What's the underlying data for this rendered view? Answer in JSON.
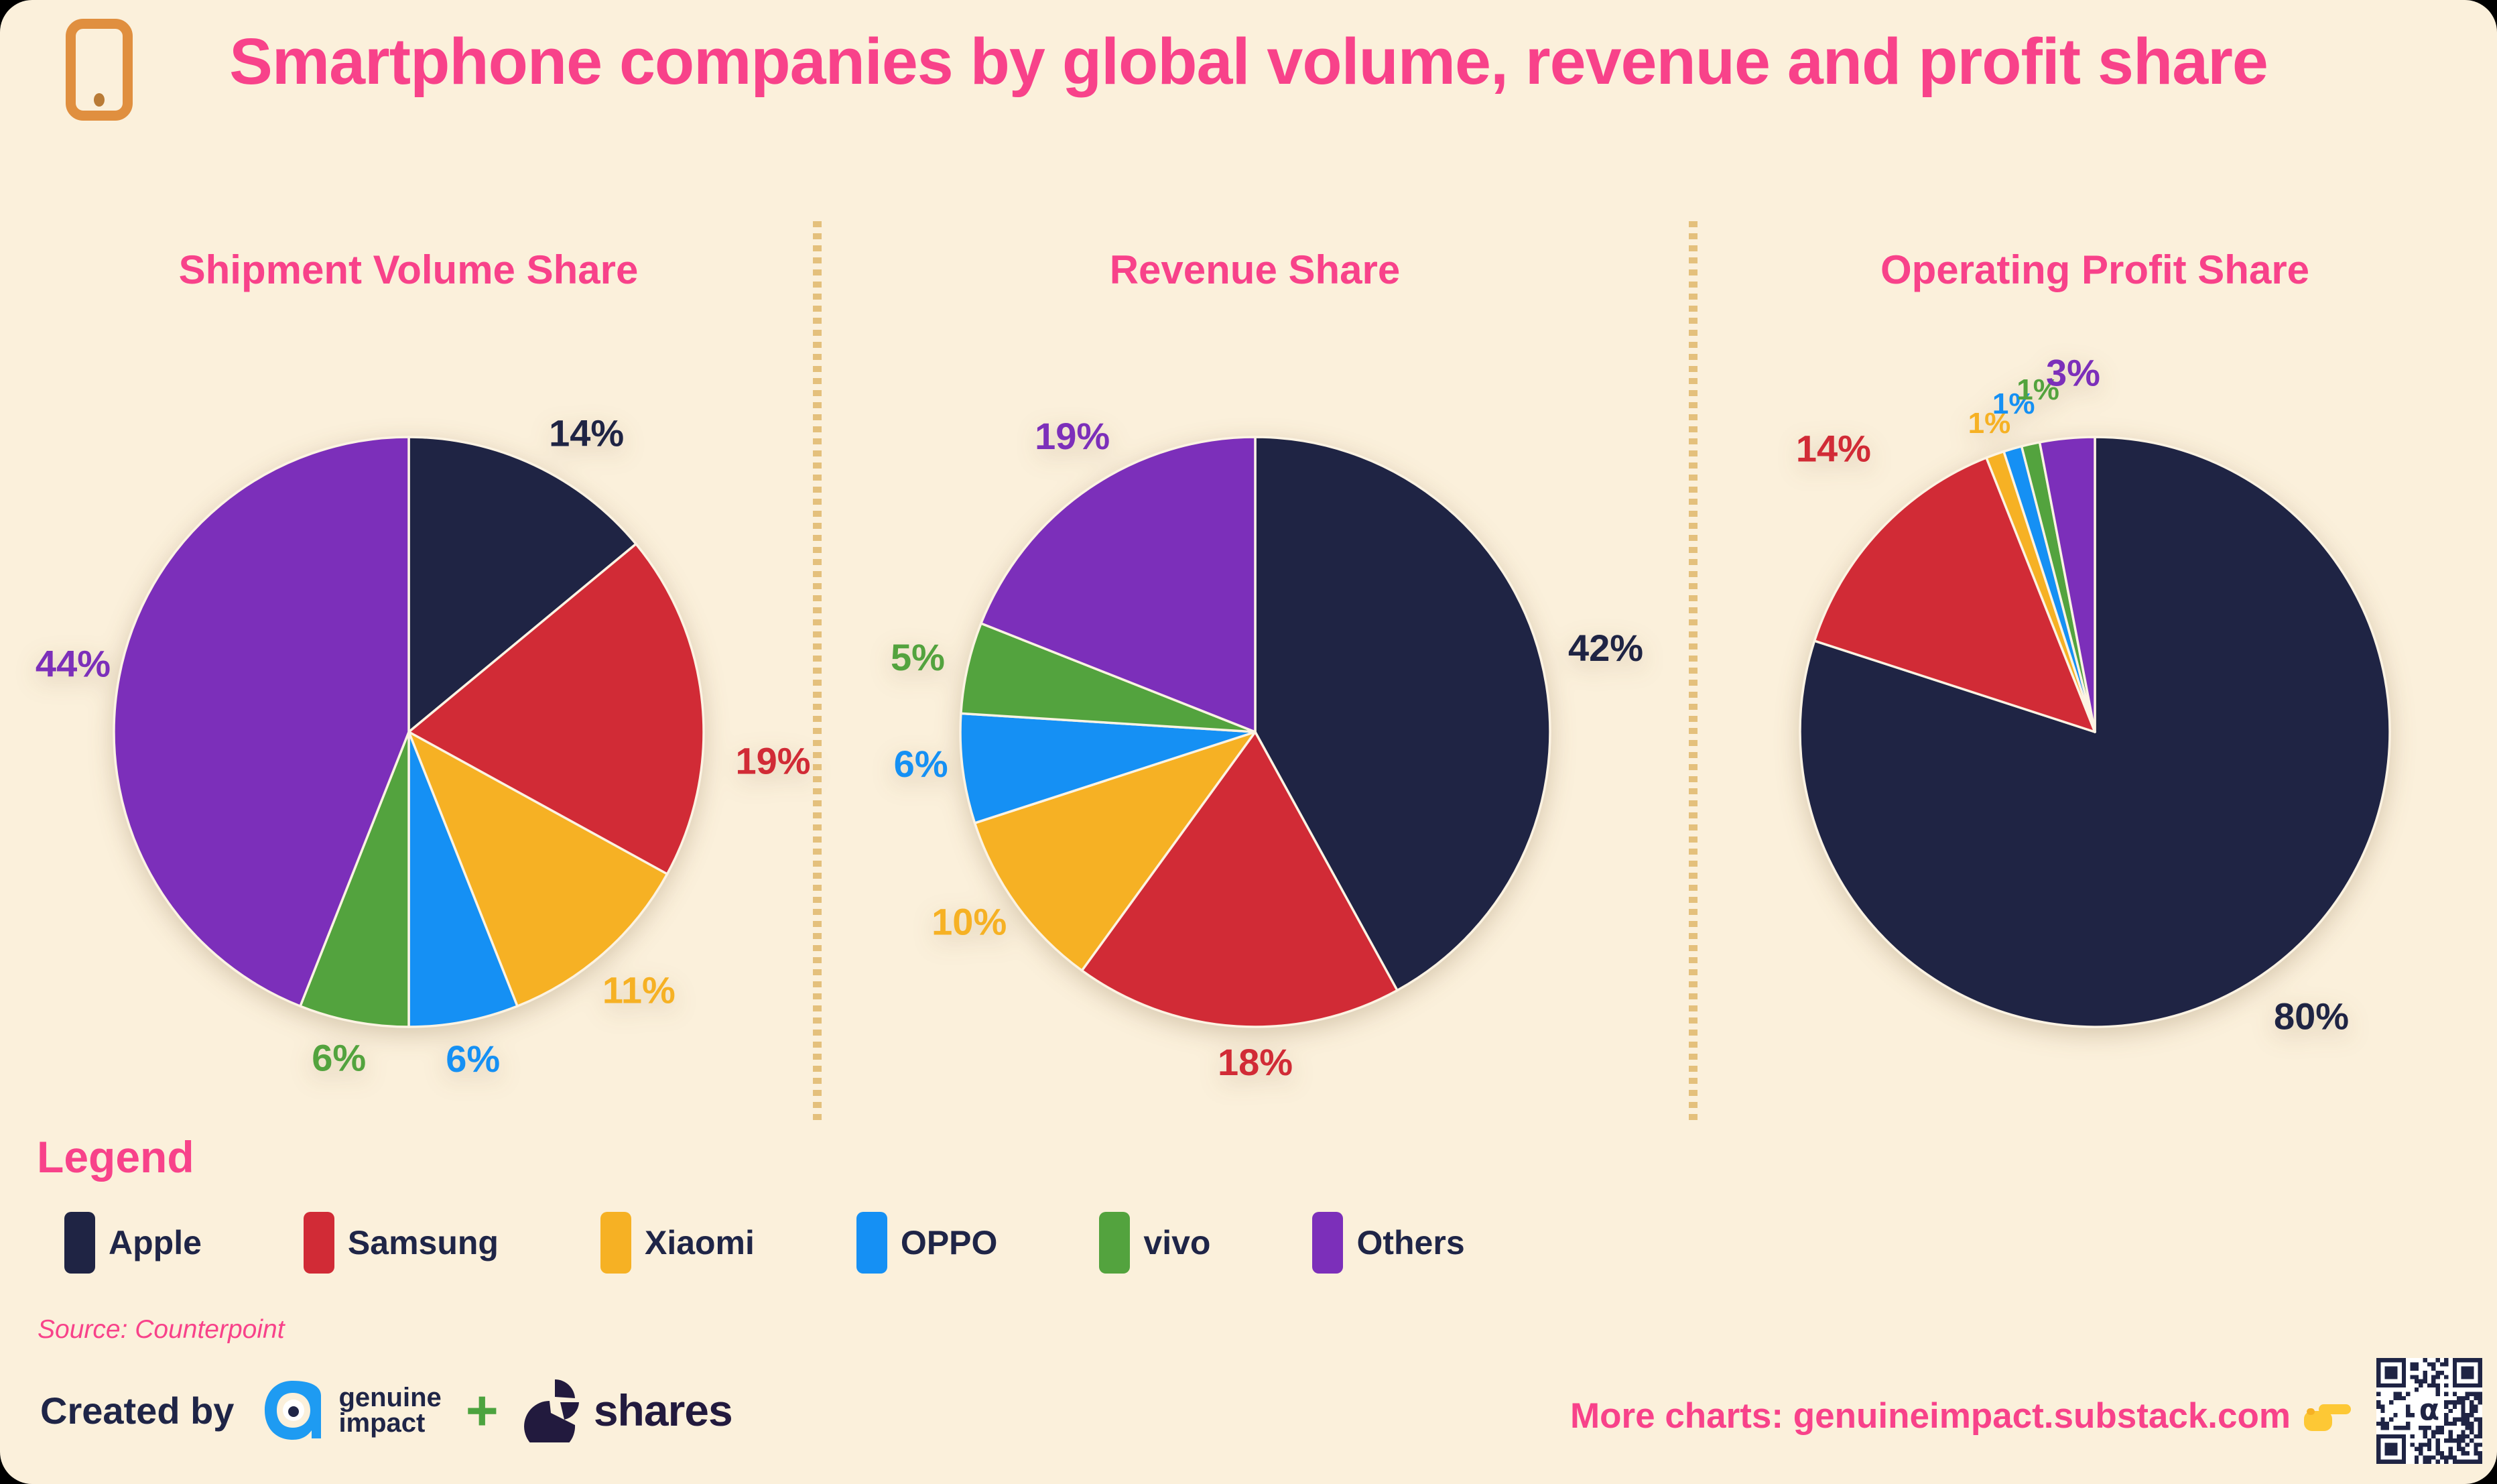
{
  "header": {
    "title": "Smartphone companies by global volume, revenue and profit share",
    "phone_icon": "smartphone-icon"
  },
  "category_colors": {
    "Apple": "#1F2444",
    "Samsung": "#D12B36",
    "Xiaomi": "#F6B124",
    "OPPO": "#1590F4",
    "vivo": "#53A33E",
    "Others": "#7C2FBA"
  },
  "ui_colors": {
    "background": "#FBF0DB",
    "accent_pink": "#F8428A",
    "navy_text": "#1F2547",
    "divider_gold": "#E4C07C",
    "phone_orange": "#E08F3F",
    "logo_blue": "#1E9BF2",
    "plus_green": "#4CA33F",
    "shares_dark": "#221A3E",
    "hand_yellow": "#FDC835",
    "qr_navy": "#1F2444"
  },
  "chart_data": [
    {
      "type": "pie",
      "title": "Shipment Volume Share",
      "categories": [
        "Apple",
        "Samsung",
        "Xiaomi",
        "OPPO",
        "vivo",
        "Others"
      ],
      "values": [
        14,
        19,
        11,
        6,
        6,
        44
      ],
      "labels": [
        "14%",
        "19%",
        "11%",
        "6%",
        "6%",
        "44%"
      ],
      "start_angle_deg": 0,
      "direction": "clockwise",
      "label_overrides": {
        "Apple": {
          "angle": 31,
          "mult": 1.17
        },
        "Samsung": {
          "angle": 95,
          "mult": 1.24
        },
        "OPPO": {
          "angle": 169,
          "mult": 1.14
        },
        "vivo": {
          "angle": 192,
          "mult": 1.14
        },
        "Others": {
          "angle": 281,
          "mult": 1.16
        }
      }
    },
    {
      "type": "pie",
      "title": "Revenue Share",
      "categories": [
        "Apple",
        "Samsung",
        "Xiaomi",
        "OPPO",
        "vivo",
        "Others"
      ],
      "values": [
        42,
        18,
        10,
        6,
        5,
        19
      ],
      "labels": [
        "42%",
        "18%",
        "10%",
        "6%",
        "5%",
        "19%"
      ],
      "start_angle_deg": 0,
      "direction": "clockwise",
      "label_overrides": {
        "Apple": {
          "angle": 77,
          "mult": 1.22
        },
        "Samsung": {
          "angle": 180,
          "mult": 1.13
        },
        "Xiaomi": {
          "angle": 236,
          "mult": 1.17
        },
        "OPPO": {
          "angle": 264,
          "mult": 1.14
        },
        "vivo": {
          "angle": 282,
          "mult": 1.17
        },
        "Others": {
          "angle": 328,
          "mult": 1.17
        }
      }
    },
    {
      "type": "pie",
      "title": "Operating Profit Share",
      "categories": [
        "Apple",
        "Samsung",
        "Xiaomi",
        "OPPO",
        "vivo",
        "Others"
      ],
      "values": [
        80,
        14,
        1,
        1,
        1,
        3
      ],
      "labels": [
        "80%",
        "14%",
        "1%",
        "1%",
        "1%",
        "3%"
      ],
      "start_angle_deg": 0,
      "direction": "clockwise",
      "label_overrides": {
        "Apple": {
          "angle": 143,
          "mult": 1.22
        },
        "Samsung": {
          "angle": 317,
          "mult": 1.3
        },
        "Xiaomi": {
          "angle": 341,
          "mult": 1.1,
          "size": 44
        },
        "OPPO": {
          "angle": 346,
          "mult": 1.14,
          "size": 44
        },
        "vivo": {
          "angle": 350.5,
          "mult": 1.17,
          "size": 44
        },
        "Others": {
          "angle": 356.5,
          "mult": 1.21
        }
      }
    }
  ],
  "legend": {
    "heading": "Legend",
    "items": [
      {
        "label": "Apple"
      },
      {
        "label": "Samsung"
      },
      {
        "label": "Xiaomi"
      },
      {
        "label": "OPPO"
      },
      {
        "label": "vivo"
      },
      {
        "label": "Others"
      }
    ]
  },
  "source_text": "Source: Counterpoint",
  "footer": {
    "created_by": "Created by",
    "genuine_impact": {
      "line1": "genuine",
      "line2": "impact"
    },
    "plus_sign": "+",
    "shares_label": "shares",
    "more_charts": "More charts: genuineimpact.substack.com"
  }
}
